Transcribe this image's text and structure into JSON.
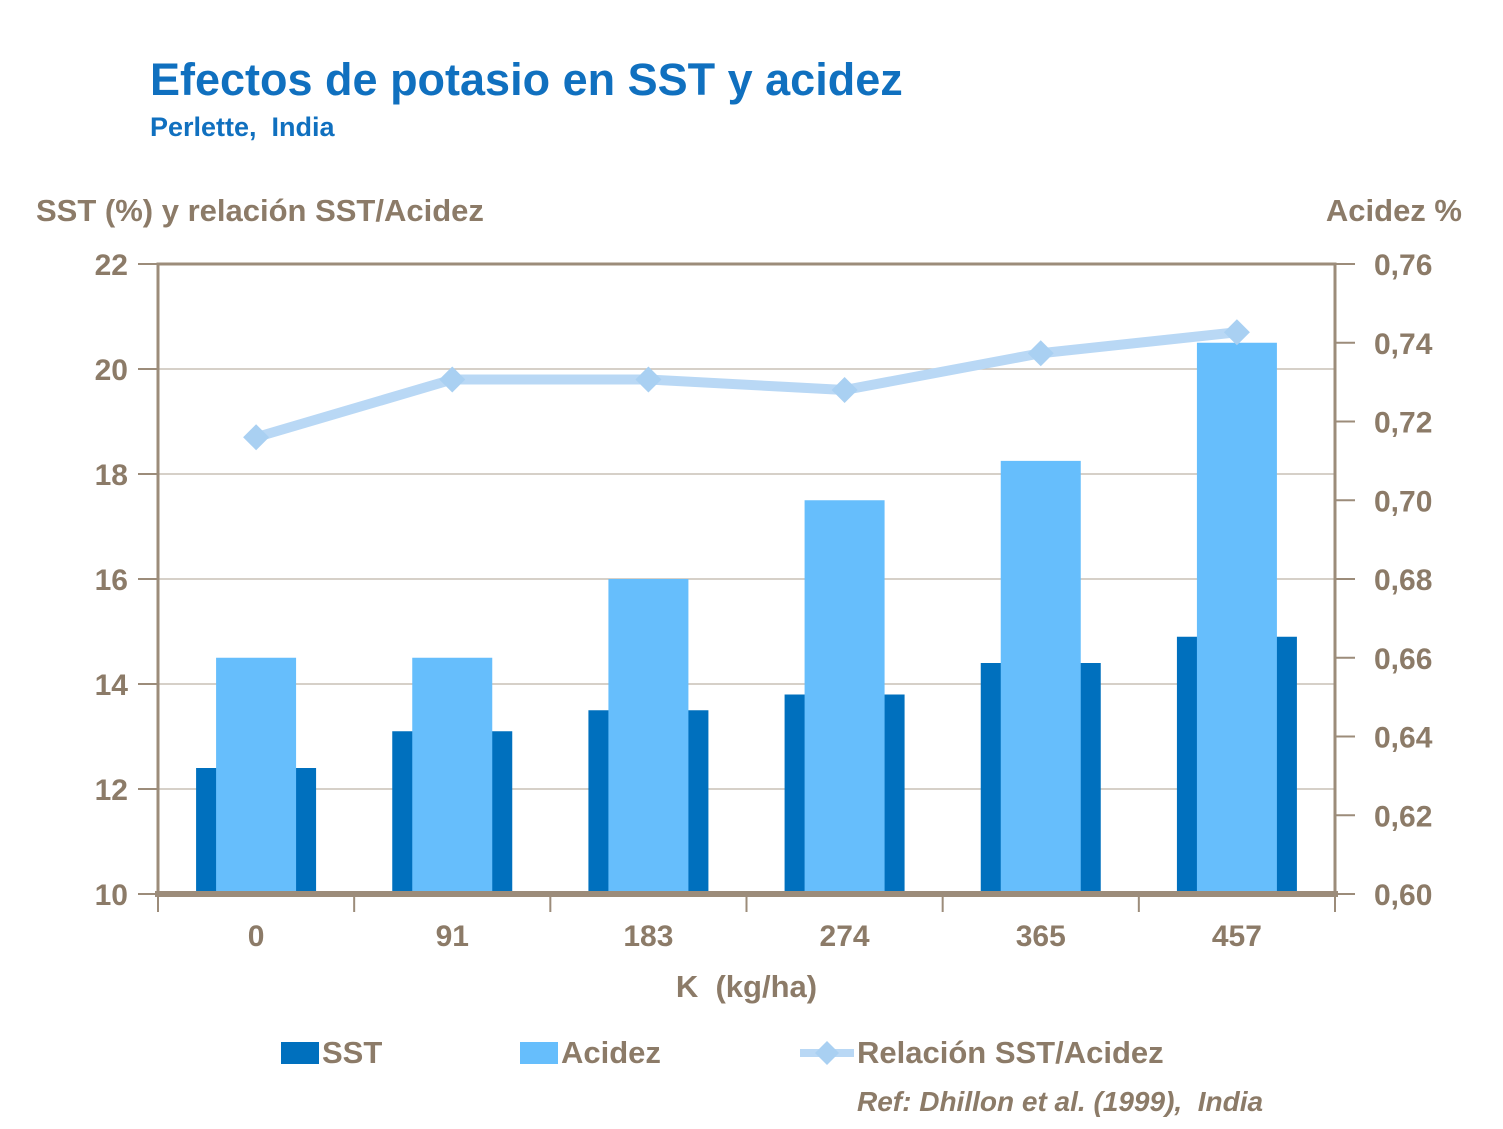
{
  "chart_data": {
    "type": "bar",
    "subtype": "combo-bar-line-dual-axis",
    "title": "Efectos de potasio en SST y acidez",
    "subtitle": "Perlette,  India",
    "categories": [
      "0",
      "91",
      "183",
      "274",
      "365",
      "457"
    ],
    "xlabel": "K  (kg/ha)",
    "left_axis": {
      "label": "SST (%) y relación SST/Acidez",
      "min": 10,
      "max": 22,
      "ticks": [
        "22",
        "20",
        "18",
        "16",
        "14",
        "12",
        "10"
      ]
    },
    "right_axis": {
      "label": "Acidez %",
      "min": 0.6,
      "max": 0.76,
      "ticks": [
        "0,76",
        "0,74",
        "0,72",
        "0,70",
        "0,68",
        "0,66",
        "0,64",
        "0,62",
        "0,60"
      ]
    },
    "series": [
      {
        "name": "SST",
        "type": "bar",
        "axis": "left",
        "values": [
          12.4,
          13.1,
          13.5,
          13.8,
          14.4,
          14.9
        ],
        "color": "#0070BE"
      },
      {
        "name": "Acidez",
        "type": "bar",
        "axis": "right",
        "values": [
          0.66,
          0.66,
          0.68,
          0.7,
          0.71,
          0.74
        ],
        "color": "#66BEFC"
      },
      {
        "name": "Relación SST/Acidez",
        "type": "line",
        "axis": "left",
        "values": [
          18.7,
          19.8,
          19.8,
          19.6,
          20.3,
          20.7
        ],
        "color": "#B9D8F5",
        "marker": "diamond",
        "marker_color": "#A9D0F2"
      }
    ],
    "legend_position": "bottom",
    "grid": "horizontal-left-axis-ticks",
    "footnote": "Ref: Dhillon et al. (1999),  India",
    "colors": {
      "text": "#8C7B68",
      "title": "#1070BF",
      "frame": "#9C8C7A",
      "grid": "#C8C0B6"
    }
  }
}
